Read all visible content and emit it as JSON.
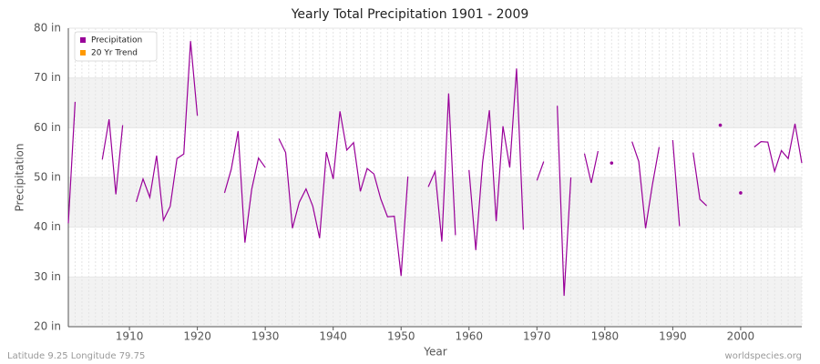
{
  "chart_data": {
    "type": "line",
    "title": "Yearly Total Precipitation 1901 - 2009",
    "x_label": "Year",
    "y_label": "Precipitation",
    "footer_left": "Latitude 9.25 Longitude 79.75",
    "footer_right": "worldspecies.org",
    "x": [
      1901,
      1902,
      1903,
      1904,
      1905,
      1906,
      1907,
      1908,
      1909,
      1910,
      1911,
      1912,
      1913,
      1914,
      1915,
      1916,
      1917,
      1918,
      1919,
      1920,
      1921,
      1922,
      1923,
      1924,
      1925,
      1926,
      1927,
      1928,
      1929,
      1930,
      1931,
      1932,
      1933,
      1934,
      1935,
      1936,
      1937,
      1938,
      1939,
      1940,
      1941,
      1942,
      1943,
      1944,
      1945,
      1946,
      1947,
      1948,
      1949,
      1950,
      1951,
      1952,
      1953,
      1954,
      1955,
      1956,
      1957,
      1958,
      1959,
      1960,
      1961,
      1962,
      1963,
      1964,
      1965,
      1966,
      1967,
      1968,
      1969,
      1970,
      1971,
      1972,
      1973,
      1974,
      1975,
      1976,
      1977,
      1978,
      1979,
      1980,
      1981,
      1982,
      1983,
      1984,
      1985,
      1986,
      1987,
      1988,
      1989,
      1990,
      1991,
      1992,
      1993,
      1994,
      1995,
      1996,
      1997,
      1998,
      1999,
      2000,
      2001,
      2002,
      2003,
      2004,
      2005,
      2006,
      2007,
      2008,
      2009
    ],
    "series": [
      {
        "name": "Precipitation",
        "color": "#990099",
        "values": [
          40.8,
          65.2,
          null,
          null,
          null,
          53.6,
          61.7,
          46.6,
          60.5,
          null,
          45.1,
          49.7,
          46.0,
          54.4,
          41.4,
          44.2,
          53.8,
          54.7,
          77.4,
          62.4,
          null,
          null,
          null,
          46.9,
          51.7,
          59.3,
          36.9,
          47.6,
          53.9,
          52.0,
          null,
          57.8,
          55.0,
          39.8,
          45.0,
          47.7,
          44.2,
          37.8,
          55.1,
          49.7,
          63.3,
          55.5,
          57.0,
          47.2,
          51.8,
          50.7,
          45.7,
          42.1,
          42.2,
          30.2,
          50.2,
          null,
          null,
          48.1,
          51.2,
          37.1,
          66.9,
          38.4,
          null,
          51.5,
          35.4,
          53.0,
          63.5,
          41.2,
          60.3,
          52.0,
          71.9,
          39.5,
          null,
          49.4,
          53.2,
          null,
          64.4,
          26.2,
          50.0,
          null,
          54.8,
          48.9,
          55.3,
          null,
          52.9,
          null,
          null,
          57.2,
          53.2,
          39.8,
          48.5,
          56.1,
          null,
          57.5,
          40.2,
          null,
          55.0,
          45.6,
          44.3,
          null,
          60.5,
          null,
          null,
          46.9,
          null,
          56.1,
          57.2,
          57.1,
          51.2,
          55.4,
          53.8,
          60.8,
          52.9
        ]
      },
      {
        "name": "20 Yr Trend",
        "color": "#ff9900",
        "values": [
          null,
          null,
          null,
          null,
          null,
          null,
          null,
          null,
          null,
          null,
          null,
          null,
          null,
          null,
          null,
          null,
          null,
          null,
          null,
          null,
          null,
          null,
          null,
          null,
          null,
          null,
          null,
          null,
          null,
          null,
          null,
          null,
          null,
          null,
          null,
          null,
          null,
          null,
          null,
          null,
          null,
          null,
          null,
          null,
          null,
          null,
          null,
          null,
          null,
          null,
          null,
          null,
          null,
          null,
          null,
          null,
          null,
          null,
          null,
          null,
          null,
          null,
          null,
          null,
          null,
          null,
          null,
          null,
          null,
          null,
          null,
          null,
          null,
          null,
          null,
          null,
          null,
          null,
          null,
          null,
          null,
          null,
          null,
          null,
          null,
          null,
          null,
          null,
          null,
          null,
          null,
          null,
          null,
          null,
          null,
          null,
          null,
          null,
          null,
          null,
          null,
          null,
          null,
          null,
          null,
          null,
          null,
          null,
          null
        ]
      }
    ],
    "xlim": [
      1901,
      2009
    ],
    "xticks": [
      1910,
      1920,
      1930,
      1940,
      1950,
      1960,
      1970,
      1980,
      1990,
      2000
    ],
    "ylim": [
      20,
      80
    ],
    "yticks": [
      {
        "value": 20,
        "label": "20 in"
      },
      {
        "value": 30,
        "label": "30 in"
      },
      {
        "value": 40,
        "label": "40 in"
      },
      {
        "value": 50,
        "label": "50 in"
      },
      {
        "value": 60,
        "label": "60 in"
      },
      {
        "value": 70,
        "label": "70 in"
      },
      {
        "value": 80,
        "label": "80 in"
      }
    ],
    "grid": true,
    "legend": "upper left"
  }
}
